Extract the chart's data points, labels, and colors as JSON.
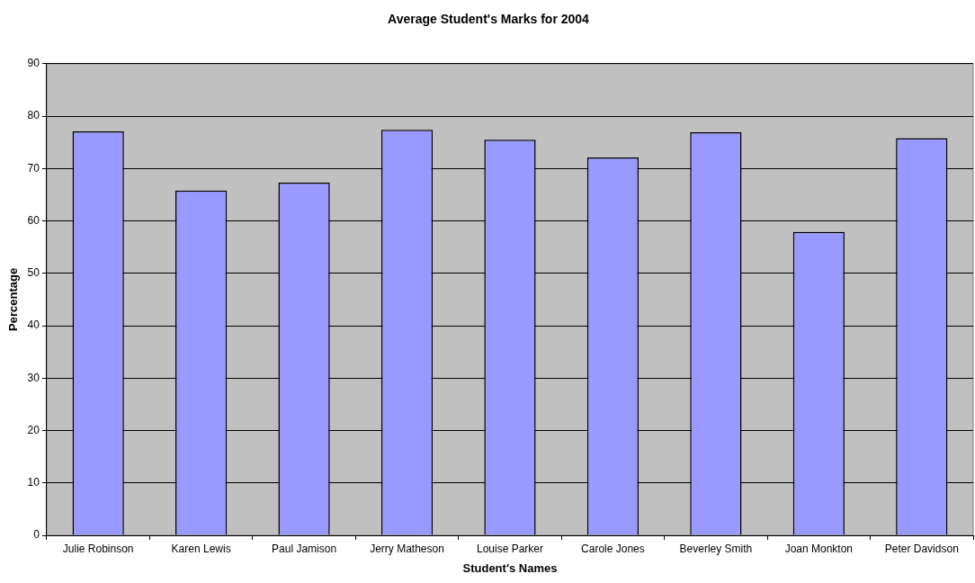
{
  "chart_data": {
    "type": "bar",
    "title": "Average Student's Marks for 2004",
    "xlabel": "Student's Names",
    "ylabel": "Percentage",
    "categories": [
      "Julie Robinson",
      "Karen Lewis",
      "Paul Jamison",
      "Jerry Matheson",
      "Louise Parker",
      "Carole Jones",
      "Beverley Smith",
      "Joan Monkton",
      "Peter Davidson"
    ],
    "values": [
      77.1,
      65.8,
      67.3,
      77.4,
      75.5,
      72.1,
      76.9,
      57.9,
      75.8
    ],
    "color": "#9999ff",
    "ylim": [
      0,
      90
    ],
    "yticks": [
      0,
      10,
      20,
      30,
      40,
      50,
      60,
      70,
      80,
      90
    ],
    "grid": "y",
    "legend": false
  }
}
